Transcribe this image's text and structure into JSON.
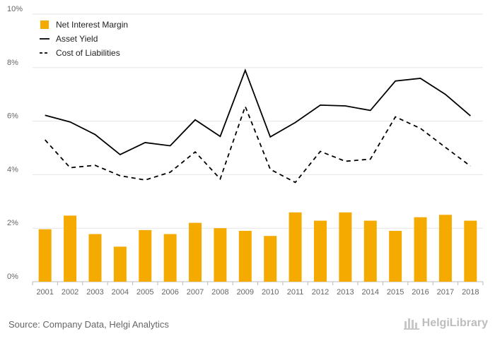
{
  "chart_data": {
    "type": "bar+line",
    "categories": [
      "2001",
      "2002",
      "2003",
      "2004",
      "2005",
      "2006",
      "2007",
      "2008",
      "2009",
      "2010",
      "2011",
      "2012",
      "2013",
      "2014",
      "2015",
      "2016",
      "2017",
      "2018"
    ],
    "series": [
      {
        "name": "Net Interest Margin",
        "kind": "bar",
        "color": "#f5aa00",
        "values": [
          1.96,
          2.47,
          1.78,
          1.31,
          1.93,
          1.78,
          2.2,
          2.0,
          1.9,
          1.71,
          2.59,
          2.28,
          2.59,
          2.28,
          1.9,
          2.41,
          2.5,
          2.28
        ]
      },
      {
        "name": "Asset Yield",
        "kind": "line",
        "style": "solid",
        "color": "#000000",
        "values": [
          6.22,
          5.97,
          5.5,
          4.75,
          5.2,
          5.08,
          6.05,
          5.43,
          7.9,
          5.41,
          5.95,
          6.6,
          6.57,
          6.4,
          7.5,
          7.6,
          7.0,
          6.2
        ]
      },
      {
        "name": "Cost of Liabilities",
        "kind": "line",
        "style": "dashed",
        "color": "#000000",
        "values": [
          5.3,
          4.26,
          4.35,
          3.96,
          3.8,
          4.09,
          4.85,
          3.84,
          6.55,
          4.2,
          3.71,
          4.87,
          4.5,
          4.58,
          6.16,
          5.73,
          5.02,
          4.32
        ]
      }
    ],
    "y_ticks": [
      "0%",
      "2%",
      "4%",
      "6%",
      "8%",
      "10%"
    ],
    "ylim": [
      0,
      10
    ],
    "grid": true,
    "legend_position": "top-left"
  },
  "footer": {
    "source": "Source: Company Data, Helgi Analytics",
    "brand": "HelgiLibrary"
  }
}
